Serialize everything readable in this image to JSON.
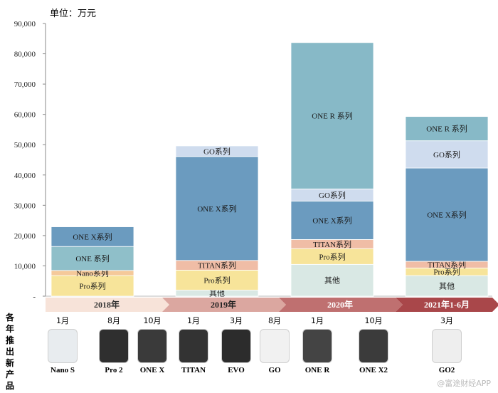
{
  "unit_label": "单位：万元",
  "vertical_label": "各年推出新产品",
  "watermark": "@富途财经APP",
  "colors": {
    "ONE X系列": "#6b9bbf",
    "ONE 系列": "#8fbfc9",
    "Nano系列": "#f5c99a",
    "Pro系列": "#f7e49a",
    "TITAN系列": "#f0bda6",
    "GO系列": "#cfdcee",
    "其他": "#d9e8e4",
    "ONE R 系列": "#87b9c7"
  },
  "chart_data": {
    "type": "bar",
    "stacked": true,
    "title": "",
    "ylabel": "单位：万元",
    "ylim": [
      0,
      90000
    ],
    "yticks": [
      "-",
      "10,000",
      "20,000",
      "30,000",
      "40,000",
      "50,000",
      "60,000",
      "70,000",
      "80,000",
      "90,000"
    ],
    "categories": [
      "2018年",
      "2019年",
      "2020年",
      "2021年1-6月"
    ],
    "bars": [
      {
        "category": "2018年",
        "segments": [
          {
            "name": "Pro系列",
            "label": "Pro系列",
            "value": 6800
          },
          {
            "name": "Nano系列",
            "label": "Nano系列",
            "value": 1700
          },
          {
            "name": "ONE 系列",
            "label": "ONE 系列",
            "value": 7900
          },
          {
            "name": "ONE X系列",
            "label": "ONE X系列",
            "value": 6500
          }
        ]
      },
      {
        "category": "2019年",
        "segments": [
          {
            "name": "其他",
            "label": "其他",
            "value": 2000
          },
          {
            "name": "Pro系列",
            "label": "Pro系列",
            "value": 6600
          },
          {
            "name": "TITAN系列",
            "label": "TITAN系列",
            "value": 3200
          },
          {
            "name": "ONE X系列",
            "label": "ONE X系列",
            "value": 34300
          },
          {
            "name": "GO系列",
            "label": "GO系列",
            "value": 3500
          }
        ]
      },
      {
        "category": "2020年",
        "segments": [
          {
            "name": "其他",
            "label": "其他",
            "value": 10500
          },
          {
            "name": "Pro系列",
            "label": "Pro系列",
            "value": 5200
          },
          {
            "name": "TITAN系列",
            "label": "TITAN系列",
            "value": 3000
          },
          {
            "name": "ONE X系列",
            "label": "ONE X系列",
            "value": 12700
          },
          {
            "name": "GO系列",
            "label": "GO系列",
            "value": 4000
          },
          {
            "name": "ONE R 系列",
            "label": "ONE R 系列",
            "value": 48300
          }
        ]
      },
      {
        "category": "2021年1-6月",
        "segments": [
          {
            "name": "其他",
            "label": "其他",
            "value": 6800
          },
          {
            "name": "Pro系列",
            "label": "Pro系列",
            "value": 2500
          },
          {
            "name": "TITAN系列",
            "label": "TITAN系列",
            "value": 2200
          },
          {
            "name": "ONE X系列",
            "label": "ONE X系列",
            "value": 30800
          },
          {
            "name": "GO系列",
            "label": "GO系列",
            "value": 9000
          },
          {
            "name": "ONE R 系列",
            "label": "ONE R 系列",
            "value": 8000
          }
        ]
      }
    ]
  },
  "timeline": {
    "years": [
      "2018年",
      "2019年",
      "2020年",
      "2021年1-6月"
    ],
    "products": [
      {
        "month": "1月",
        "name": "Nano S"
      },
      {
        "month": "8月",
        "name": "Pro 2"
      },
      {
        "month": "10月",
        "name": "ONE X"
      },
      {
        "month": "1月",
        "name": "TITAN"
      },
      {
        "month": "3月",
        "name": "EVO"
      },
      {
        "month": "8月",
        "name": "GO"
      },
      {
        "month": "1月",
        "name": "ONE R"
      },
      {
        "month": "10月",
        "name": "ONE X2"
      },
      {
        "month": "3月",
        "name": "GO2"
      }
    ]
  }
}
